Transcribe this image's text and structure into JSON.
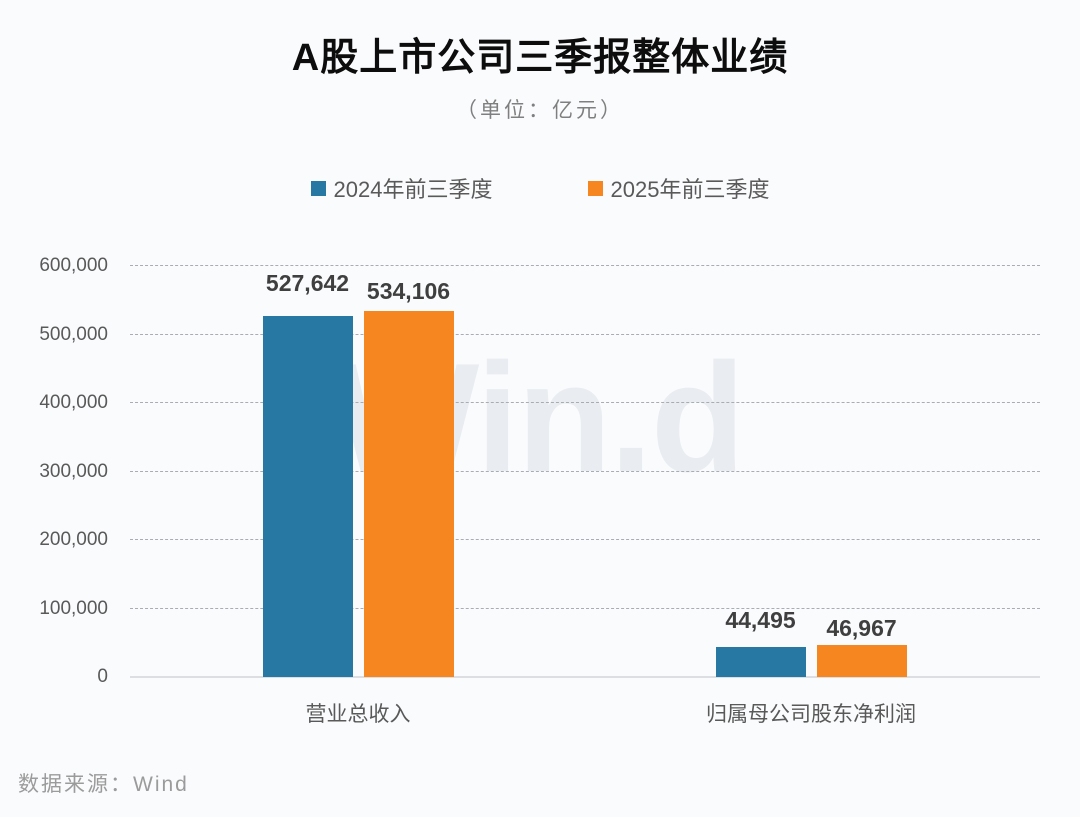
{
  "header": {
    "title": "A股上市公司三季报整体业绩",
    "subtitle": "（单位：亿元）"
  },
  "watermark": "Win.d",
  "footer": {
    "source": "数据来源：Wind"
  },
  "chart_data": {
    "type": "bar",
    "title": "A股上市公司三季报整体业绩",
    "unit_note": "（单位：亿元）",
    "categories": [
      "营业总收入",
      "归属母公司股东净利润"
    ],
    "series": [
      {
        "name": "2024年前三季度",
        "color": "#2878A4",
        "values": [
          527642,
          44495
        ],
        "labels": [
          "527,642",
          "44,495"
        ]
      },
      {
        "name": "2025年前三季度",
        "color": "#F6861F",
        "values": [
          534106,
          46967
        ],
        "labels": [
          "534,106",
          "46,967"
        ]
      }
    ],
    "xlabel": "",
    "ylabel": "",
    "ylim": [
      0,
      600000
    ],
    "ytick_values": [
      600000,
      500000,
      400000,
      300000,
      200000,
      100000,
      0
    ],
    "ytick_labels": [
      "600,000",
      "500,000",
      "400,000",
      "300,000",
      "200,000",
      "100,000",
      "0"
    ],
    "grid": "horizontal-dashed",
    "legend_position": "top"
  }
}
